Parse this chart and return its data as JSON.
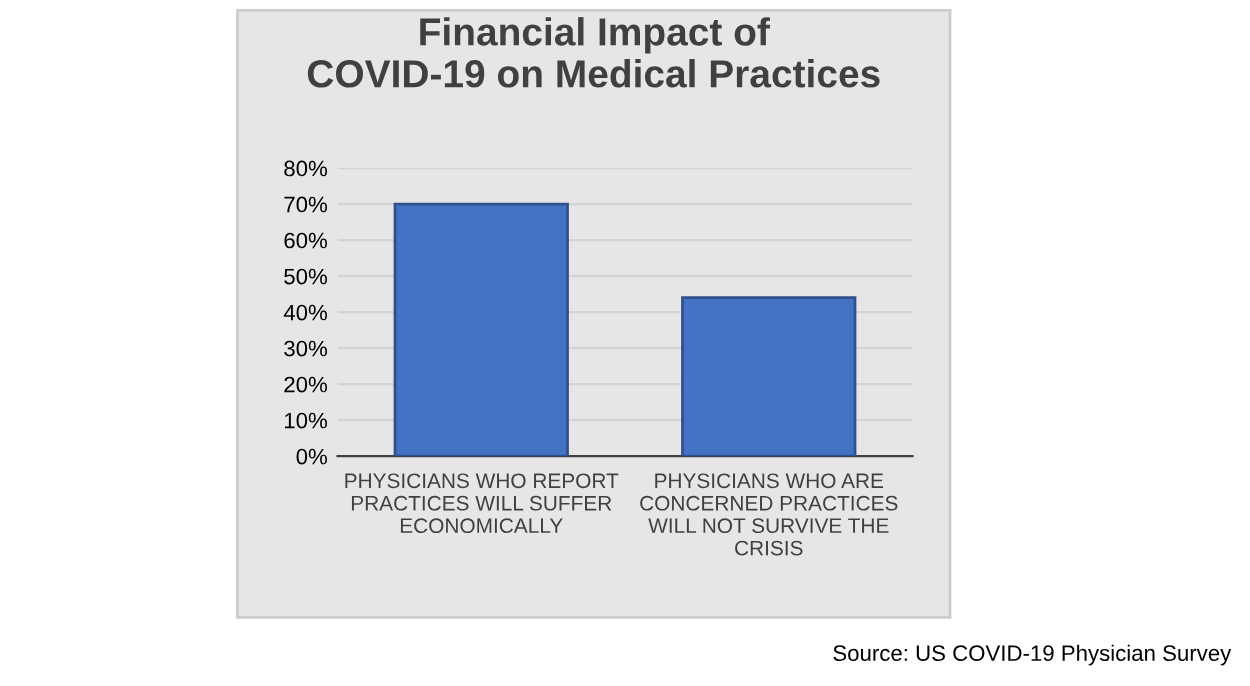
{
  "chart_data": {
    "type": "bar",
    "title": "Financial Impact of\nCOVID-19 on Medical Practices",
    "categories": [
      "PHYSICIANS WHO REPORT\nPRACTICES WILL SUFFER\nECONOMICALLY",
      "PHYSICIANS WHO ARE\nCONCERNED PRACTICES\nWILL NOT SURVIVE THE\nCRISIS"
    ],
    "values": [
      70,
      44
    ],
    "color": "#4472c4",
    "ylim": [
      0,
      80
    ],
    "yticks": [
      {
        "value": 0,
        "label": "0%"
      },
      {
        "value": 10,
        "label": "10%"
      },
      {
        "value": 20,
        "label": "20%"
      },
      {
        "value": 30,
        "label": "30%"
      },
      {
        "value": 40,
        "label": "40%"
      },
      {
        "value": 50,
        "label": "50%"
      },
      {
        "value": 60,
        "label": "60%"
      },
      {
        "value": 70,
        "label": "70%"
      },
      {
        "value": 80,
        "label": "80%"
      }
    ],
    "grid": "y",
    "annotations": [
      "Source: US COVID-19 Physician Survey"
    ]
  }
}
